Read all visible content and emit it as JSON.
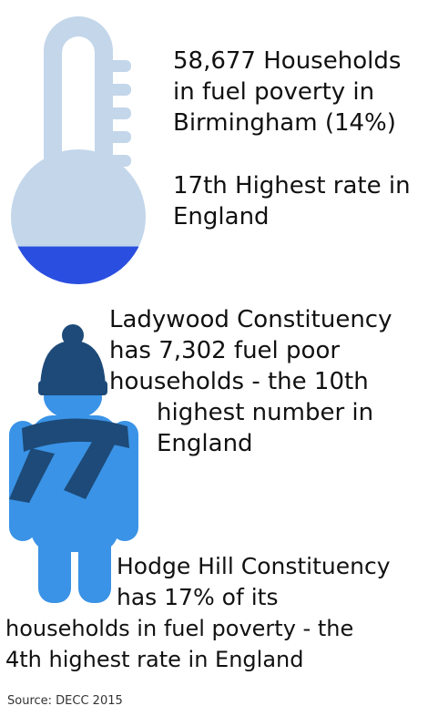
{
  "block1": {
    "lines": [
      "58,677 Households",
      "in fuel poverty in",
      "Birmingham (14%)"
    ]
  },
  "block2": {
    "lines": [
      "17th Highest rate in",
      "England"
    ]
  },
  "block3": {
    "lines": [
      "Ladywood Constituency",
      "has 7,302 fuel poor",
      "households - the 10th",
      "highest number in",
      "England"
    ]
  },
  "block4": {
    "lines": [
      "Hodge Hill Constituency",
      "has 17% of its",
      "households in fuel poverty - the",
      "4th highest rate in England"
    ]
  },
  "source": "Source: DECC 2015",
  "thermometer": {
    "fill_level": 0.28,
    "body_color": "#c3d6ea",
    "fill_color": "#2a4fe0"
  },
  "person": {
    "body_color": "#3a93e6",
    "hat_color": "#1d4a78",
    "scarf_color": "#1d4a78"
  }
}
